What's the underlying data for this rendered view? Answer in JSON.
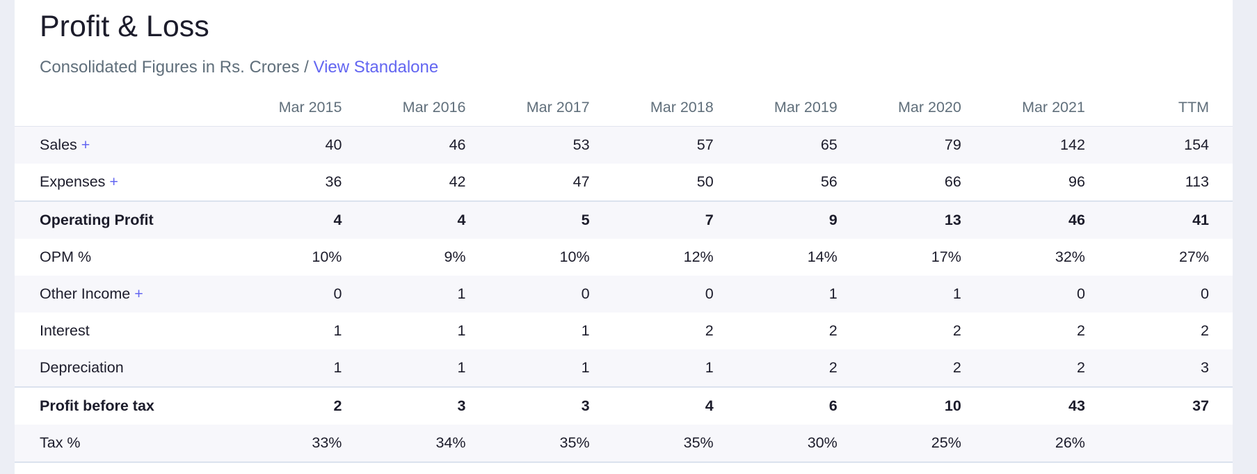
{
  "title": "Profit & Loss",
  "subtitle": {
    "text": "Consolidated Figures in Rs. Crores / ",
    "link": "View Standalone"
  },
  "expand_symbol": "+",
  "columns": [
    "Mar 2015",
    "Mar 2016",
    "Mar 2017",
    "Mar 2018",
    "Mar 2019",
    "Mar 2020",
    "Mar 2021",
    "TTM"
  ],
  "rows": [
    {
      "label": "Sales",
      "values": [
        "40",
        "46",
        "53",
        "57",
        "65",
        "79",
        "142",
        "154"
      ]
    },
    {
      "label": "Expenses",
      "values": [
        "36",
        "42",
        "47",
        "50",
        "56",
        "66",
        "96",
        "113"
      ]
    },
    {
      "label": "Operating Profit",
      "values": [
        "4",
        "4",
        "5",
        "7",
        "9",
        "13",
        "46",
        "41"
      ]
    },
    {
      "label": "OPM %",
      "values": [
        "10%",
        "9%",
        "10%",
        "12%",
        "14%",
        "17%",
        "32%",
        "27%"
      ]
    },
    {
      "label": "Other Income",
      "values": [
        "0",
        "1",
        "0",
        "0",
        "1",
        "1",
        "0",
        "0"
      ]
    },
    {
      "label": "Interest",
      "values": [
        "1",
        "1",
        "1",
        "2",
        "2",
        "2",
        "2",
        "2"
      ]
    },
    {
      "label": "Depreciation",
      "values": [
        "1",
        "1",
        "1",
        "1",
        "2",
        "2",
        "2",
        "3"
      ]
    },
    {
      "label": "Profit before tax",
      "values": [
        "2",
        "3",
        "3",
        "4",
        "6",
        "10",
        "43",
        "37"
      ]
    },
    {
      "label": "Tax %",
      "values": [
        "33%",
        "34%",
        "35%",
        "35%",
        "30%",
        "25%",
        "26%",
        ""
      ]
    }
  ]
}
